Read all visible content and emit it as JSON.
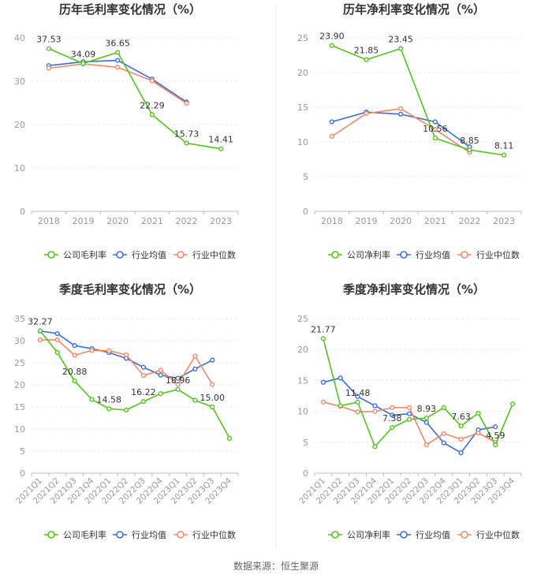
{
  "source": "数据来源：恒生聚源",
  "colors": {
    "company": "#52c41a",
    "industry_avg": "#3b6fd8",
    "industry_median": "#f4876a",
    "axis": "#999999",
    "grid": "#e8e8e8",
    "text": "#333333"
  },
  "chart_data": [
    {
      "type": "line",
      "title": "历年毛利率变化情况（%）",
      "x": [
        "2018",
        "2019",
        "2020",
        "2021",
        "2022",
        "2023"
      ],
      "ylim": [
        0,
        40
      ],
      "yticks": [
        "0",
        "10",
        "20",
        "30",
        "40"
      ],
      "series": [
        {
          "name": "公司毛利率",
          "values": [
            37.53,
            34.09,
            36.65,
            22.29,
            15.73,
            14.41
          ],
          "labels": [
            "37.53",
            "34.09",
            "36.65",
            "22.29",
            "15.73",
            "14.41"
          ]
        },
        {
          "name": "行业均值",
          "values": [
            33.6,
            34.5,
            34.8,
            30.5,
            25.2,
            null
          ]
        },
        {
          "name": "行业中位数",
          "values": [
            33.0,
            34.0,
            33.2,
            30.1,
            24.9,
            null
          ]
        }
      ]
    },
    {
      "type": "line",
      "title": "历年净利率变化情况（%）",
      "x": [
        "2018",
        "2019",
        "2020",
        "2021",
        "2022",
        "2023"
      ],
      "ylim": [
        0,
        25
      ],
      "yticks": [
        "0",
        "5",
        "10",
        "15",
        "20",
        "25"
      ],
      "series": [
        {
          "name": "公司净利率",
          "values": [
            23.9,
            21.85,
            23.45,
            10.56,
            8.85,
            8.11
          ],
          "labels": [
            "23.90",
            "21.85",
            "23.45",
            "10.56",
            "8.85",
            "8.11"
          ]
        },
        {
          "name": "行业均值",
          "values": [
            12.9,
            14.3,
            14.0,
            12.9,
            9.3,
            null
          ]
        },
        {
          "name": "行业中位数",
          "values": [
            10.8,
            14.1,
            14.8,
            11.8,
            8.5,
            null
          ]
        }
      ]
    },
    {
      "type": "line",
      "title": "季度毛利率变化情况（%）",
      "x": [
        "2021Q1",
        "2021Q2",
        "2021Q3",
        "2021Q4",
        "2022Q1",
        "2022Q2",
        "2022Q3",
        "2022Q4",
        "2023Q1",
        "2023Q2",
        "2023Q3",
        "2023Q4"
      ],
      "ylim": [
        0,
        35
      ],
      "yticks": [
        "0",
        "5",
        "10",
        "15",
        "20",
        "25",
        "30",
        "35"
      ],
      "series": [
        {
          "name": "公司毛利率",
          "values": [
            32.27,
            27.3,
            20.88,
            16.7,
            14.58,
            14.3,
            16.22,
            18.0,
            18.96,
            16.5,
            15.0,
            7.9
          ],
          "labels": [
            "32.27",
            "",
            "20.88",
            "",
            "14.58",
            "",
            "16.22",
            "",
            "18.96",
            "",
            "15.00",
            ""
          ]
        },
        {
          "name": "行业均值",
          "values": [
            32.2,
            31.6,
            28.9,
            28.2,
            27.3,
            26.0,
            24.0,
            22.2,
            21.5,
            23.6,
            25.6,
            null
          ]
        },
        {
          "name": "行业中位数",
          "values": [
            30.2,
            30.2,
            26.7,
            27.8,
            27.7,
            26.8,
            22.1,
            23.3,
            20.1,
            26.5,
            20.1,
            null
          ]
        }
      ]
    },
    {
      "type": "line",
      "title": "季度净利率变化情况（%）",
      "x": [
        "2021Q1",
        "2021Q2",
        "2021Q3",
        "2021Q4",
        "2022Q1",
        "2022Q2",
        "2022Q3",
        "2022Q4",
        "2023Q1",
        "2023Q2",
        "2023Q3",
        "2023Q4"
      ],
      "ylim": [
        0,
        25
      ],
      "yticks": [
        "0",
        "5",
        "10",
        "15",
        "20",
        "25"
      ],
      "series": [
        {
          "name": "公司净利率",
          "values": [
            21.77,
            10.9,
            11.48,
            4.3,
            7.38,
            8.7,
            8.93,
            10.6,
            7.63,
            9.7,
            4.59,
            11.2
          ],
          "labels": [
            "21.77",
            "",
            "11.48",
            "",
            "7.38",
            "",
            "8.93",
            "",
            "7.63",
            "",
            "4.59",
            ""
          ]
        },
        {
          "name": "行业均值",
          "values": [
            14.7,
            15.4,
            12.4,
            10.9,
            9.4,
            9.6,
            8.2,
            4.9,
            3.3,
            7.0,
            7.5,
            null
          ]
        },
        {
          "name": "行业中位数",
          "values": [
            11.5,
            10.8,
            9.9,
            10.0,
            10.6,
            10.6,
            4.6,
            6.4,
            5.5,
            6.5,
            5.0,
            null
          ]
        }
      ]
    }
  ]
}
